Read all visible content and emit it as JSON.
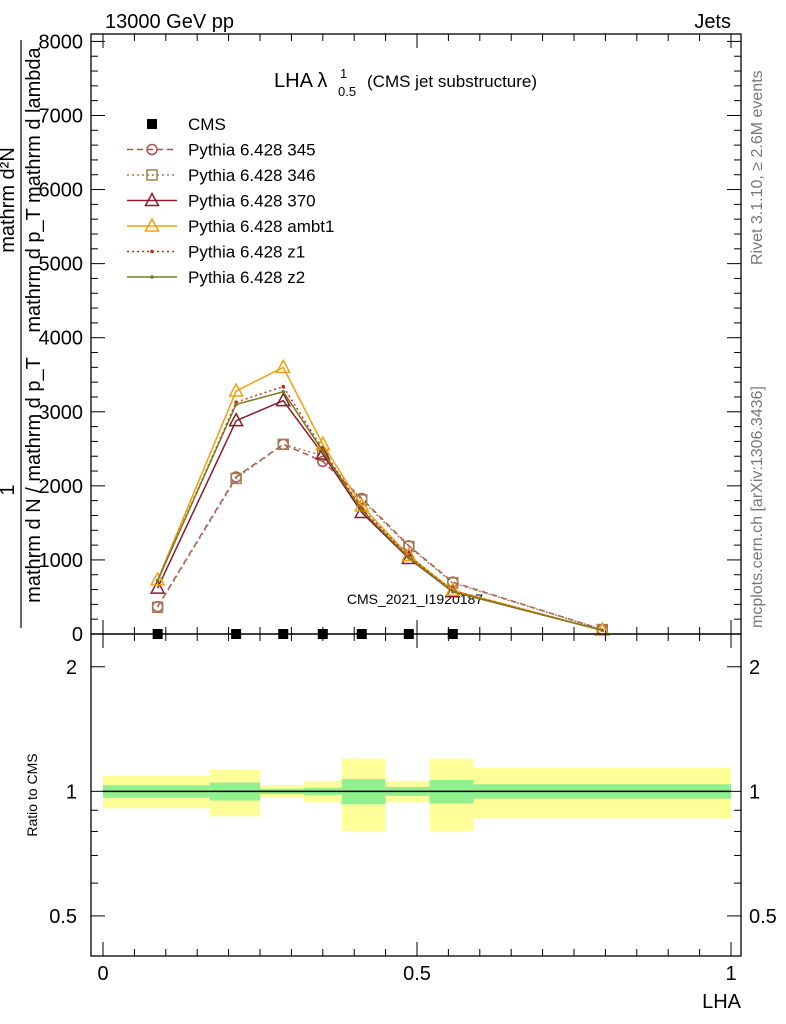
{
  "header": {
    "left": "13000 GeV pp",
    "right": "Jets"
  },
  "side_labels": {
    "rivet": "Rivet 3.1.10, ≥ 2.6M events",
    "mcplots": "mcplots.cern.ch [arXiv:1306.3436]"
  },
  "chart_data": [
    {
      "type": "line",
      "title": "LHA λ",
      "title_sup": "1",
      "title_sub": "0.5",
      "subtitle": "(CMS jet substructure)",
      "watermark": "CMS_2021_I1920187",
      "ylabel_parts": [
        "1",
        "mathrm d N / mathrm d p_T",
        "mathrm d²N",
        "mathrm d p_T mathrm d lambda"
      ],
      "xlabel": "",
      "xlim": [
        0,
        1
      ],
      "ylim": [
        0,
        8100
      ],
      "yticks": [
        0,
        1000,
        2000,
        3000,
        4000,
        5000,
        6000,
        7000,
        8000
      ],
      "ytick_labels": [
        "0",
        "1000",
        "2000",
        "3000",
        "4000",
        "5000",
        "6000",
        "7000",
        "8000"
      ],
      "legend_position": "top-left",
      "x": [
        0.087,
        0.212,
        0.287,
        0.35,
        0.412,
        0.487,
        0.557,
        0.795
      ],
      "series": [
        {
          "name": "CMS",
          "color": "#000000",
          "marker": "square",
          "dash": "none",
          "values": [
            0,
            0,
            0,
            0,
            0,
            0,
            0,
            null
          ]
        },
        {
          "name": "Pythia 6.428 345",
          "color": "#b05050",
          "marker": "circle",
          "dash": "6,4",
          "values": [
            370,
            2120,
            2560,
            2330,
            1830,
            1190,
            700,
            60
          ]
        },
        {
          "name": "Pythia 6.428 346",
          "color": "#a08050",
          "marker": "square-open",
          "dash": "2,3",
          "values": [
            360,
            2100,
            2560,
            2410,
            1810,
            1180,
            690,
            60
          ]
        },
        {
          "name": "Pythia 6.428 370",
          "color": "#8b1a2a",
          "marker": "triangle",
          "dash": "none",
          "values": [
            620,
            2880,
            3150,
            2430,
            1640,
            1020,
            570,
            50
          ]
        },
        {
          "name": "Pythia 6.428 ambt1",
          "color": "#f0a010",
          "marker": "triangle",
          "dash": "none",
          "values": [
            730,
            3280,
            3600,
            2560,
            1730,
            1060,
            590,
            50
          ]
        },
        {
          "name": "Pythia 6.428 z1",
          "color": "#c03020",
          "marker": "dot",
          "dash": "2,3",
          "values": [
            720,
            3130,
            3340,
            2490,
            1690,
            1050,
            580,
            50
          ]
        },
        {
          "name": "Pythia 6.428 z2",
          "color": "#7a7a20",
          "marker": "dot",
          "dash": "none",
          "values": [
            720,
            3100,
            3270,
            2470,
            1670,
            1030,
            570,
            50
          ]
        }
      ]
    },
    {
      "type": "area",
      "ylabel": "Ratio to CMS",
      "xlabel": "LHA",
      "xlim": [
        0,
        1
      ],
      "ylim": [
        0.4,
        2.4
      ],
      "scale": "log",
      "yticks": [
        0.5,
        1,
        2
      ],
      "ytick_labels": [
        "0.5",
        "1",
        "2"
      ],
      "xticks": [
        0,
        0.5,
        1
      ],
      "xtick_labels": [
        "0",
        "0.5",
        "1"
      ],
      "band_colors": {
        "stat": "#90f090",
        "total": "#ffff99"
      },
      "bins": [
        {
          "lo": 0.0,
          "hi": 0.17,
          "stat": 0.035,
          "total": 0.09
        },
        {
          "lo": 0.17,
          "hi": 0.25,
          "stat": 0.05,
          "total": 0.13
        },
        {
          "lo": 0.25,
          "hi": 0.32,
          "stat": 0.015,
          "total": 0.035
        },
        {
          "lo": 0.32,
          "hi": 0.38,
          "stat": 0.02,
          "total": 0.06
        },
        {
          "lo": 0.38,
          "hi": 0.45,
          "stat": 0.07,
          "total": 0.2
        },
        {
          "lo": 0.45,
          "hi": 0.52,
          "stat": 0.025,
          "total": 0.06
        },
        {
          "lo": 0.52,
          "hi": 0.59,
          "stat": 0.065,
          "total": 0.2
        },
        {
          "lo": 0.59,
          "hi": 1.0,
          "stat": 0.04,
          "total": 0.14
        }
      ]
    }
  ]
}
